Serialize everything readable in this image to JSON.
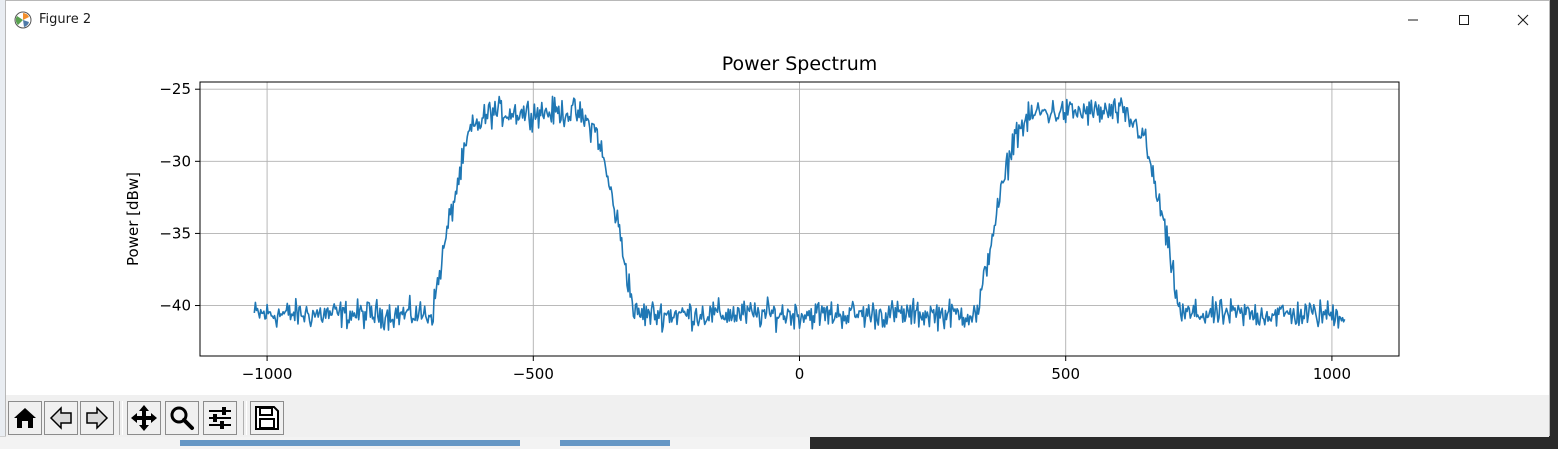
{
  "window": {
    "title": "Figure 2",
    "controls": {
      "minimize": "minimize-icon",
      "maximize": "maximize-icon",
      "close": "close-icon"
    }
  },
  "toolbar": {
    "buttons": [
      {
        "name": "home-button",
        "icon": "home-icon"
      },
      {
        "name": "back-button",
        "icon": "back-arrow-icon"
      },
      {
        "name": "forward-button",
        "icon": "forward-arrow-icon"
      },
      {
        "name": "pan-button",
        "icon": "move-icon"
      },
      {
        "name": "zoom-button",
        "icon": "zoom-icon"
      },
      {
        "name": "configure-subplots-button",
        "icon": "sliders-icon"
      },
      {
        "name": "save-button",
        "icon": "floppy-disk-icon"
      }
    ]
  },
  "chart_data": {
    "type": "line",
    "title": "Power Spectrum",
    "xlabel": "",
    "ylabel": "Power [dBw]",
    "xlim": [
      -1126,
      1126
    ],
    "ylim": [
      -43.5,
      -24.5
    ],
    "xticks": [
      -1000,
      -500,
      0,
      500,
      1000
    ],
    "xtick_labels": [
      "−1000",
      "−500",
      "0",
      "500",
      "1000"
    ],
    "yticks": [
      -25,
      -30,
      -35,
      -40
    ],
    "ytick_labels": [
      "−25",
      "−30",
      "−35",
      "−40"
    ],
    "grid": true,
    "color": "#1f77b4",
    "series": [
      {
        "x_range": [
          -1024,
          1024
        ],
        "approximate_shape": [
          {
            "x": -1024,
            "y": -40.6
          },
          {
            "x": -690,
            "y": -40.6
          },
          {
            "x": -660,
            "y": -34.5
          },
          {
            "x": -620,
            "y": -28.0
          },
          {
            "x": -580,
            "y": -26.6
          },
          {
            "x": -420,
            "y": -26.6
          },
          {
            "x": -380,
            "y": -28.0
          },
          {
            "x": -340,
            "y": -34.5
          },
          {
            "x": -310,
            "y": -40.6
          },
          {
            "x": 335,
            "y": -40.6
          },
          {
            "x": 365,
            "y": -34.5
          },
          {
            "x": 405,
            "y": -28.0
          },
          {
            "x": 445,
            "y": -26.6
          },
          {
            "x": 605,
            "y": -26.6
          },
          {
            "x": 645,
            "y": -28.0
          },
          {
            "x": 685,
            "y": -34.5
          },
          {
            "x": 715,
            "y": -40.6
          },
          {
            "x": 1024,
            "y": -40.6
          }
        ],
        "noise_amplitude_db": 0.9
      }
    ]
  }
}
